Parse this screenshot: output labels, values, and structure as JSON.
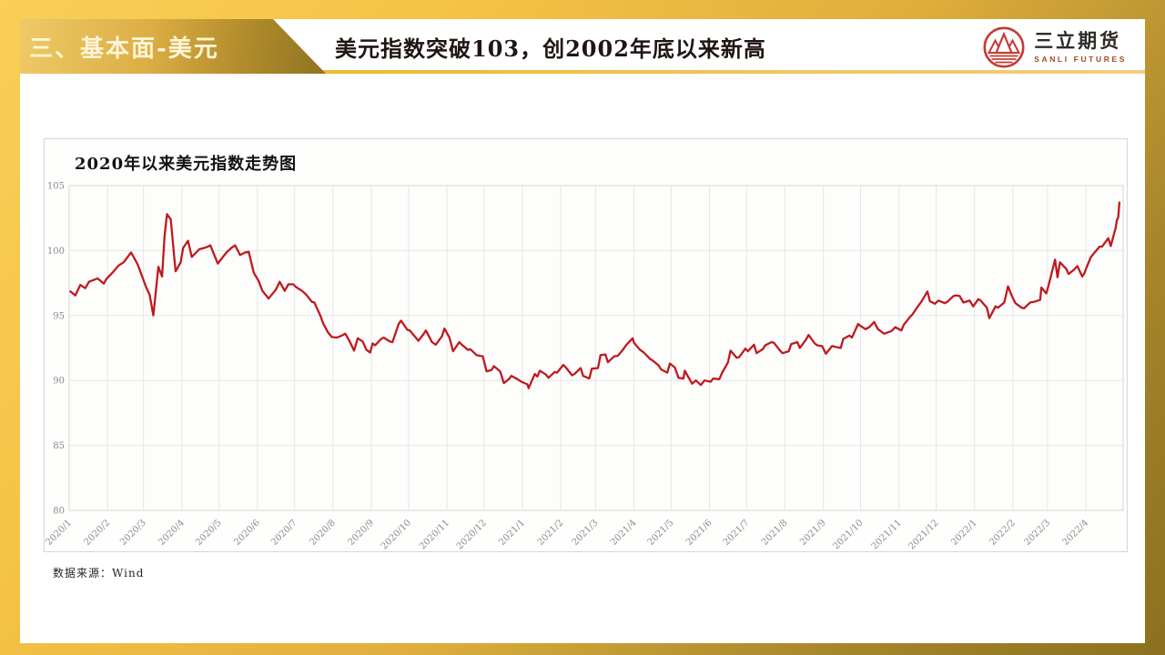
{
  "slide": {
    "section_tab": "三、基本面-美元",
    "title": "美元指数突破103，创2002年底以来新高",
    "source_note": "数据来源：Wind"
  },
  "logo": {
    "icon": "sanli-mountains-icon",
    "name_cn": "三立期货",
    "name_en": "SANLI FUTURES"
  },
  "colors": {
    "frame_gold_bright": "#F5C444",
    "frame_gold_dark": "#8B7120",
    "banner_text": "#FCF4D4",
    "title_text": "#201512",
    "line_red": "#BE1A20",
    "grid": "#E6E6E4",
    "plot_border": "#D6D6D4",
    "axis_text": "#8A8A8A",
    "logo_red": "#C43B33"
  },
  "chart_data": {
    "type": "line",
    "title": "2020年以来美元指数走势图",
    "xlabel": "",
    "ylabel": "",
    "ylim": [
      80,
      105
    ],
    "y_ticks": [
      80,
      85,
      90,
      95,
      100,
      105
    ],
    "grid": true,
    "legend": "none",
    "x_start": "2020-01-01",
    "x_end": "2022-05-01",
    "x_ticks": [
      "2020/1",
      "2020/2",
      "2020/3",
      "2020/4",
      "2020/5",
      "2020/6",
      "2020/7",
      "2020/8",
      "2020/9",
      "2020/10",
      "2020/11",
      "2020/12",
      "2021/1",
      "2021/2",
      "2021/3",
      "2021/4",
      "2021/5",
      "2021/6",
      "2021/7",
      "2021/8",
      "2021/9",
      "2021/10",
      "2021/11",
      "2021/12",
      "2022/1",
      "2022/2",
      "2022/3",
      "2022/4"
    ],
    "series": [
      {
        "name": "美元指数",
        "color": "#BE1A20",
        "points": [
          [
            "2020-01-02",
            96.85
          ],
          [
            "2020-01-06",
            96.55
          ],
          [
            "2020-01-10",
            97.35
          ],
          [
            "2020-01-14",
            97.1
          ],
          [
            "2020-01-17",
            97.6
          ],
          [
            "2020-01-24",
            97.85
          ],
          [
            "2020-01-29",
            97.45
          ],
          [
            "2020-01-31",
            97.8
          ],
          [
            "2020-02-05",
            98.3
          ],
          [
            "2020-02-10",
            98.85
          ],
          [
            "2020-02-14",
            99.1
          ],
          [
            "2020-02-20",
            99.85
          ],
          [
            "2020-02-25",
            99.0
          ],
          [
            "2020-02-27",
            98.5
          ],
          [
            "2020-03-03",
            97.2
          ],
          [
            "2020-03-06",
            96.6
          ],
          [
            "2020-03-09",
            95.0
          ],
          [
            "2020-03-13",
            98.75
          ],
          [
            "2020-03-16",
            98.0
          ],
          [
            "2020-03-18",
            101.1
          ],
          [
            "2020-03-20",
            102.8
          ],
          [
            "2020-03-23",
            102.4
          ],
          [
            "2020-03-26",
            99.3
          ],
          [
            "2020-03-27",
            98.4
          ],
          [
            "2020-03-31",
            99.1
          ],
          [
            "2020-04-02",
            100.2
          ],
          [
            "2020-04-06",
            100.75
          ],
          [
            "2020-04-09",
            99.5
          ],
          [
            "2020-04-15",
            100.1
          ],
          [
            "2020-04-21",
            100.25
          ],
          [
            "2020-04-24",
            100.4
          ],
          [
            "2020-04-30",
            99.0
          ],
          [
            "2020-05-07",
            99.85
          ],
          [
            "2020-05-11",
            100.2
          ],
          [
            "2020-05-14",
            100.4
          ],
          [
            "2020-05-18",
            99.65
          ],
          [
            "2020-05-22",
            99.85
          ],
          [
            "2020-05-25",
            99.9
          ],
          [
            "2020-05-29",
            98.3
          ],
          [
            "2020-06-02",
            97.65
          ],
          [
            "2020-06-05",
            96.9
          ],
          [
            "2020-06-10",
            96.3
          ],
          [
            "2020-06-16",
            97.0
          ],
          [
            "2020-06-19",
            97.6
          ],
          [
            "2020-06-23",
            96.9
          ],
          [
            "2020-06-26",
            97.4
          ],
          [
            "2020-06-30",
            97.4
          ],
          [
            "2020-07-02",
            97.2
          ],
          [
            "2020-07-07",
            96.9
          ],
          [
            "2020-07-10",
            96.65
          ],
          [
            "2020-07-15",
            96.05
          ],
          [
            "2020-07-17",
            96.0
          ],
          [
            "2020-07-22",
            94.95
          ],
          [
            "2020-07-24",
            94.4
          ],
          [
            "2020-07-28",
            93.7
          ],
          [
            "2020-07-31",
            93.35
          ],
          [
            "2020-08-04",
            93.3
          ],
          [
            "2020-08-07",
            93.4
          ],
          [
            "2020-08-11",
            93.6
          ],
          [
            "2020-08-14",
            93.1
          ],
          [
            "2020-08-18",
            92.3
          ],
          [
            "2020-08-21",
            93.25
          ],
          [
            "2020-08-25",
            93.0
          ],
          [
            "2020-08-28",
            92.35
          ],
          [
            "2020-08-31",
            92.15
          ],
          [
            "2020-09-02",
            92.85
          ],
          [
            "2020-09-04",
            92.7
          ],
          [
            "2020-09-09",
            93.2
          ],
          [
            "2020-09-11",
            93.3
          ],
          [
            "2020-09-16",
            93.0
          ],
          [
            "2020-09-18",
            92.95
          ],
          [
            "2020-09-23",
            94.35
          ],
          [
            "2020-09-25",
            94.6
          ],
          [
            "2020-09-30",
            93.9
          ],
          [
            "2020-10-02",
            93.85
          ],
          [
            "2020-10-06",
            93.4
          ],
          [
            "2020-10-09",
            93.05
          ],
          [
            "2020-10-13",
            93.55
          ],
          [
            "2020-10-15",
            93.85
          ],
          [
            "2020-10-20",
            92.95
          ],
          [
            "2020-10-23",
            92.75
          ],
          [
            "2020-10-28",
            93.4
          ],
          [
            "2020-10-30",
            94.0
          ],
          [
            "2020-11-03",
            93.3
          ],
          [
            "2020-11-06",
            92.25
          ],
          [
            "2020-11-11",
            92.95
          ],
          [
            "2020-11-13",
            92.75
          ],
          [
            "2020-11-18",
            92.35
          ],
          [
            "2020-11-20",
            92.4
          ],
          [
            "2020-11-25",
            91.95
          ],
          [
            "2020-11-30",
            91.85
          ],
          [
            "2020-12-03",
            90.7
          ],
          [
            "2020-12-07",
            90.8
          ],
          [
            "2020-12-09",
            91.1
          ],
          [
            "2020-12-14",
            90.7
          ],
          [
            "2020-12-17",
            89.8
          ],
          [
            "2020-12-21",
            90.1
          ],
          [
            "2020-12-23",
            90.35
          ],
          [
            "2020-12-28",
            90.1
          ],
          [
            "2020-12-31",
            89.9
          ],
          [
            "2021-01-05",
            89.7
          ],
          [
            "2021-01-06",
            89.4
          ],
          [
            "2021-01-11",
            90.5
          ],
          [
            "2021-01-13",
            90.3
          ],
          [
            "2021-01-15",
            90.75
          ],
          [
            "2021-01-20",
            90.45
          ],
          [
            "2021-01-22",
            90.2
          ],
          [
            "2021-01-27",
            90.65
          ],
          [
            "2021-01-29",
            90.6
          ],
          [
            "2021-02-03",
            91.2
          ],
          [
            "2021-02-05",
            91.0
          ],
          [
            "2021-02-10",
            90.4
          ],
          [
            "2021-02-12",
            90.5
          ],
          [
            "2021-02-17",
            90.95
          ],
          [
            "2021-02-19",
            90.35
          ],
          [
            "2021-02-24",
            90.15
          ],
          [
            "2021-02-26",
            90.9
          ],
          [
            "2021-03-03",
            90.95
          ],
          [
            "2021-03-05",
            91.95
          ],
          [
            "2021-03-09",
            92.0
          ],
          [
            "2021-03-11",
            91.4
          ],
          [
            "2021-03-16",
            91.85
          ],
          [
            "2021-03-19",
            91.9
          ],
          [
            "2021-03-23",
            92.35
          ],
          [
            "2021-03-26",
            92.75
          ],
          [
            "2021-03-31",
            93.25
          ],
          [
            "2021-04-01",
            92.9
          ],
          [
            "2021-04-06",
            92.35
          ],
          [
            "2021-04-09",
            92.15
          ],
          [
            "2021-04-14",
            91.65
          ],
          [
            "2021-04-16",
            91.55
          ],
          [
            "2021-04-21",
            91.15
          ],
          [
            "2021-04-23",
            90.85
          ],
          [
            "2021-04-28",
            90.6
          ],
          [
            "2021-04-30",
            91.3
          ],
          [
            "2021-05-04",
            91.0
          ],
          [
            "2021-05-07",
            90.2
          ],
          [
            "2021-05-11",
            90.15
          ],
          [
            "2021-05-12",
            90.75
          ],
          [
            "2021-05-18",
            89.75
          ],
          [
            "2021-05-21",
            90.0
          ],
          [
            "2021-05-25",
            89.65
          ],
          [
            "2021-05-28",
            90.0
          ],
          [
            "2021-06-02",
            89.9
          ],
          [
            "2021-06-04",
            90.15
          ],
          [
            "2021-06-09",
            90.1
          ],
          [
            "2021-06-11",
            90.55
          ],
          [
            "2021-06-16",
            91.4
          ],
          [
            "2021-06-18",
            92.3
          ],
          [
            "2021-06-23",
            91.75
          ],
          [
            "2021-06-25",
            91.8
          ],
          [
            "2021-06-30",
            92.45
          ],
          [
            "2021-07-02",
            92.25
          ],
          [
            "2021-07-07",
            92.75
          ],
          [
            "2021-07-09",
            92.1
          ],
          [
            "2021-07-14",
            92.4
          ],
          [
            "2021-07-16",
            92.7
          ],
          [
            "2021-07-21",
            92.95
          ],
          [
            "2021-07-23",
            92.9
          ],
          [
            "2021-07-28",
            92.3
          ],
          [
            "2021-07-30",
            92.1
          ],
          [
            "2021-08-04",
            92.25
          ],
          [
            "2021-08-06",
            92.8
          ],
          [
            "2021-08-11",
            92.95
          ],
          [
            "2021-08-13",
            92.5
          ],
          [
            "2021-08-18",
            93.15
          ],
          [
            "2021-08-20",
            93.5
          ],
          [
            "2021-08-25",
            92.85
          ],
          [
            "2021-08-27",
            92.7
          ],
          [
            "2021-08-31",
            92.65
          ],
          [
            "2021-09-03",
            92.05
          ],
          [
            "2021-09-08",
            92.65
          ],
          [
            "2021-09-10",
            92.6
          ],
          [
            "2021-09-15",
            92.5
          ],
          [
            "2021-09-17",
            93.2
          ],
          [
            "2021-09-22",
            93.45
          ],
          [
            "2021-09-24",
            93.3
          ],
          [
            "2021-09-29",
            94.35
          ],
          [
            "2021-09-30",
            94.25
          ],
          [
            "2021-10-05",
            93.95
          ],
          [
            "2021-10-08",
            94.1
          ],
          [
            "2021-10-12",
            94.5
          ],
          [
            "2021-10-15",
            93.95
          ],
          [
            "2021-10-20",
            93.6
          ],
          [
            "2021-10-26",
            93.8
          ],
          [
            "2021-10-29",
            94.1
          ],
          [
            "2021-11-03",
            93.85
          ],
          [
            "2021-11-05",
            94.3
          ],
          [
            "2021-11-10",
            94.9
          ],
          [
            "2021-11-12",
            95.1
          ],
          [
            "2021-11-17",
            95.8
          ],
          [
            "2021-11-19",
            96.05
          ],
          [
            "2021-11-24",
            96.85
          ],
          [
            "2021-11-26",
            96.1
          ],
          [
            "2021-11-30",
            95.9
          ],
          [
            "2021-12-03",
            96.15
          ],
          [
            "2021-12-08",
            95.95
          ],
          [
            "2021-12-10",
            96.05
          ],
          [
            "2021-12-15",
            96.5
          ],
          [
            "2021-12-17",
            96.55
          ],
          [
            "2021-12-20",
            96.5
          ],
          [
            "2021-12-23",
            96.0
          ],
          [
            "2021-12-28",
            96.15
          ],
          [
            "2021-12-31",
            95.7
          ],
          [
            "2022-01-04",
            96.25
          ],
          [
            "2022-01-06",
            96.15
          ],
          [
            "2022-01-11",
            95.6
          ],
          [
            "2022-01-13",
            94.8
          ],
          [
            "2022-01-18",
            95.7
          ],
          [
            "2022-01-20",
            95.6
          ],
          [
            "2022-01-25",
            96.0
          ],
          [
            "2022-01-28",
            97.25
          ],
          [
            "2022-01-31",
            96.55
          ],
          [
            "2022-02-03",
            95.95
          ],
          [
            "2022-02-08",
            95.6
          ],
          [
            "2022-02-10",
            95.55
          ],
          [
            "2022-02-15",
            96.0
          ],
          [
            "2022-02-18",
            96.05
          ],
          [
            "2022-02-23",
            96.2
          ],
          [
            "2022-02-24",
            97.15
          ],
          [
            "2022-02-28",
            96.7
          ],
          [
            "2022-03-02",
            97.4
          ],
          [
            "2022-03-07",
            99.3
          ],
          [
            "2022-03-09",
            97.95
          ],
          [
            "2022-03-11",
            99.1
          ],
          [
            "2022-03-16",
            98.6
          ],
          [
            "2022-03-18",
            98.2
          ],
          [
            "2022-03-22",
            98.5
          ],
          [
            "2022-03-25",
            98.8
          ],
          [
            "2022-03-29",
            98.0
          ],
          [
            "2022-03-31",
            98.3
          ],
          [
            "2022-04-01",
            98.6
          ],
          [
            "2022-04-05",
            99.5
          ],
          [
            "2022-04-08",
            99.85
          ],
          [
            "2022-04-12",
            100.3
          ],
          [
            "2022-04-14",
            100.3
          ],
          [
            "2022-04-19",
            100.95
          ],
          [
            "2022-04-21",
            100.35
          ],
          [
            "2022-04-25",
            101.75
          ],
          [
            "2022-04-26",
            102.35
          ],
          [
            "2022-04-27",
            102.55
          ],
          [
            "2022-04-28",
            103.7
          ]
        ]
      }
    ]
  }
}
